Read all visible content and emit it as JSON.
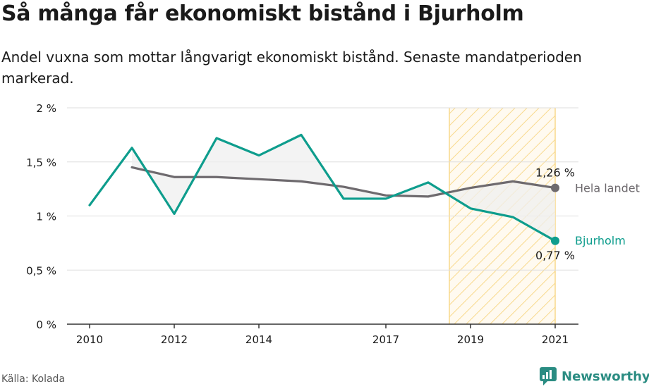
{
  "header": {
    "title": "Så många får ekonomiskt bistånd i Bjurholm",
    "subtitle": "Andel vuxna som mottar långvarigt ekonomiskt bistånd. Senaste mandatperioden markerad."
  },
  "footer": {
    "source": "Källa: Kolada",
    "brand": "Newsworthy"
  },
  "chart_data": {
    "type": "line",
    "x_ticks": [
      "2010",
      "2012",
      "2014",
      "2017",
      "2019",
      "2021"
    ],
    "x_tick_values": [
      2010,
      2012,
      2014,
      2017,
      2019,
      2021
    ],
    "y_ticks": [
      "0 %",
      "0,5 %",
      "1 %",
      "1,5 %",
      "2 %"
    ],
    "y_tick_values": [
      0,
      0.5,
      1,
      1.5,
      2
    ],
    "xlim": [
      2010,
      2021
    ],
    "ylim": [
      0,
      2
    ],
    "highlight_period": [
      2019,
      2021
    ],
    "series": [
      {
        "name": "Hela landet",
        "color": "#6e6a6e",
        "x": [
          2011,
          2012,
          2013,
          2014,
          2015,
          2016,
          2017,
          2018,
          2019,
          2020,
          2021
        ],
        "values": [
          1.45,
          1.36,
          1.36,
          1.34,
          1.32,
          1.27,
          1.19,
          1.18,
          1.26,
          1.32,
          1.26
        ],
        "end_label": "1,26 %"
      },
      {
        "name": "Bjurholm",
        "color": "#0e9d8d",
        "x": [
          2010,
          2011,
          2012,
          2013,
          2014,
          2015,
          2016,
          2017,
          2018,
          2019,
          2020,
          2021
        ],
        "values": [
          1.1,
          1.63,
          1.02,
          1.72,
          1.56,
          1.75,
          1.16,
          1.16,
          1.31,
          1.07,
          0.99,
          0.77
        ],
        "end_label": "0,77 %"
      }
    ]
  }
}
